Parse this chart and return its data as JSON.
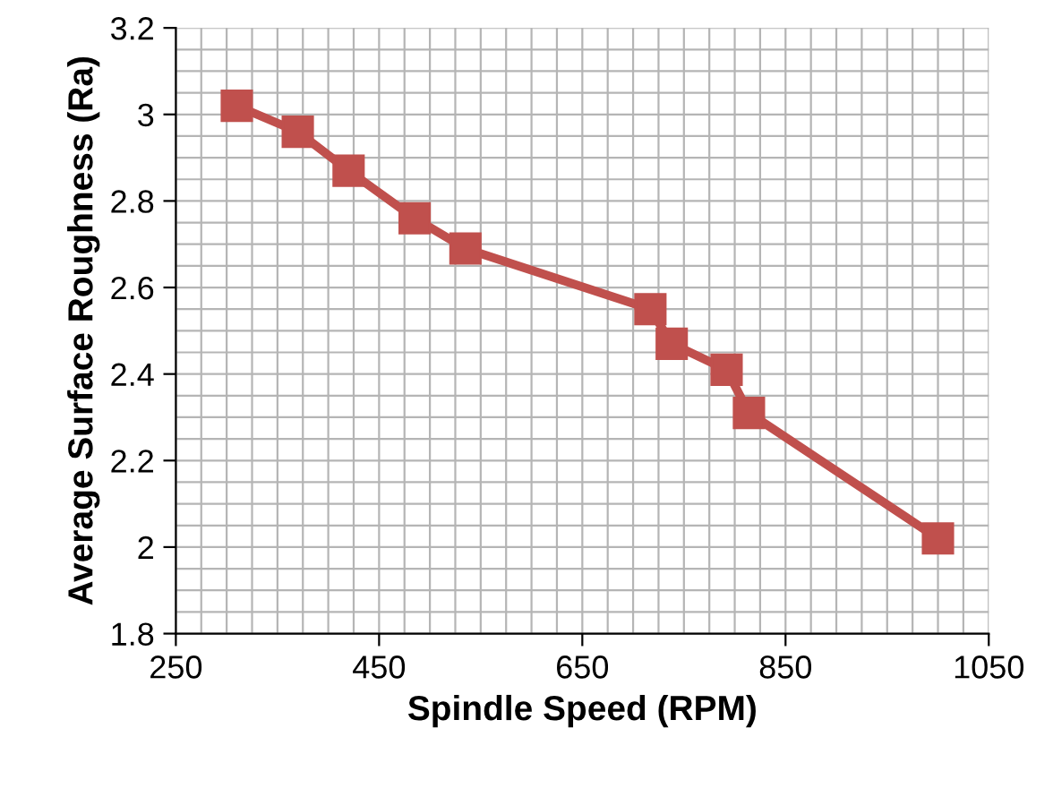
{
  "chart_data": {
    "type": "line",
    "xlabel": "Spindle Speed (RPM)",
    "ylabel": "Average Surface Roughness (Ra)",
    "x": [
      310,
      370,
      420,
      485,
      535,
      717,
      738,
      792,
      814,
      1000
    ],
    "series": [
      {
        "color": "#c0504d",
        "values": [
          3.02,
          2.96,
          2.87,
          2.76,
          2.69,
          2.55,
          2.47,
          2.41,
          2.31,
          2.02
        ]
      }
    ],
    "xlim": [
      250,
      1050
    ],
    "xticks": [
      250,
      450,
      650,
      850,
      1050
    ],
    "ylim": [
      1.8,
      3.2
    ],
    "yticks": [
      1.8,
      2,
      2.2,
      2.4,
      2.6,
      2.8,
      3,
      3.2
    ],
    "grid": true,
    "marker": "square",
    "line_style": "solid",
    "legend": false
  }
}
